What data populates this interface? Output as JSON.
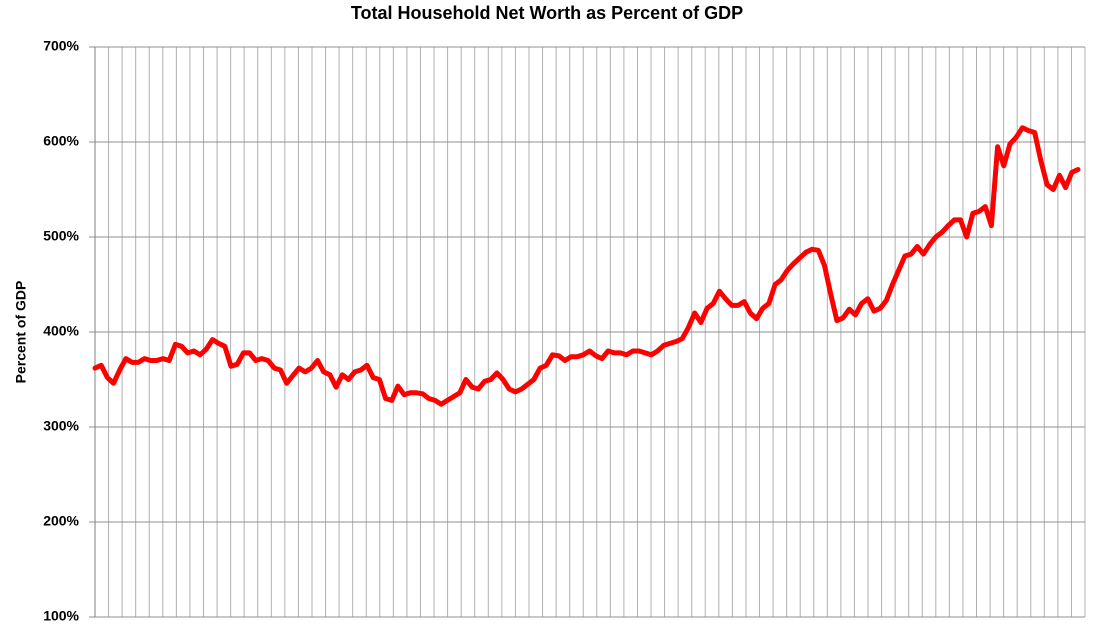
{
  "chart_data": {
    "type": "line",
    "title": "Total Household Net Worth as Percent of GDP",
    "y_label": "Percent of GDP",
    "categories": [
      null,
      null,
      null,
      null,
      null,
      null,
      null,
      null,
      null,
      null,
      null,
      null,
      null,
      null,
      null,
      null,
      null,
      null,
      null,
      null,
      null,
      null,
      null,
      null,
      null,
      null,
      null,
      null,
      null,
      null,
      null,
      null,
      null,
      null,
      null,
      null,
      null,
      null,
      null,
      null,
      null,
      null,
      null,
      null,
      null,
      null,
      null,
      null,
      null,
      null,
      null,
      null,
      null,
      null,
      null,
      null,
      null,
      null,
      null,
      null,
      null,
      null,
      null,
      null,
      null,
      null,
      null,
      null,
      null,
      null,
      null,
      null,
      null,
      null,
      null,
      null,
      null,
      null,
      null,
      null,
      null,
      null,
      null,
      null,
      null,
      null,
      null,
      null,
      null,
      null,
      null,
      null,
      null,
      null,
      null,
      null,
      null,
      null,
      null,
      null,
      null,
      null,
      null,
      null,
      null,
      null,
      null,
      null,
      null,
      null,
      null,
      null,
      null,
      null,
      null,
      null,
      null,
      null,
      null,
      null,
      null,
      null,
      null,
      null,
      null,
      null,
      null,
      null,
      null,
      null,
      null,
      null,
      null,
      null,
      null,
      null,
      null,
      null,
      null,
      null,
      null,
      null,
      null,
      null,
      null,
      null,
      null,
      null,
      null,
      null,
      null,
      null,
      null,
      null,
      null,
      null,
      null,
      null,
      null,
      null
    ],
    "values": [
      362,
      365,
      352,
      346,
      360,
      372,
      368,
      368,
      372,
      370,
      370,
      372,
      370,
      387,
      385,
      378,
      380,
      376,
      382,
      392,
      388,
      385,
      364,
      366,
      378,
      378,
      370,
      372,
      370,
      362,
      360,
      346,
      354,
      362,
      358,
      362,
      370,
      358,
      355,
      342,
      355,
      350,
      358,
      360,
      365,
      352,
      350,
      330,
      328,
      343,
      334,
      336,
      336,
      335,
      330,
      328,
      324,
      328,
      332,
      336,
      350,
      342,
      340,
      348,
      350,
      357,
      350,
      340,
      337,
      340,
      345,
      350,
      362,
      365,
      376,
      375,
      370,
      374,
      374,
      376,
      380,
      375,
      372,
      380,
      378,
      378,
      376,
      380,
      380,
      378,
      376,
      380,
      386,
      388,
      390,
      393,
      405,
      420,
      410,
      425,
      430,
      443,
      435,
      428,
      428,
      432,
      420,
      414,
      425,
      430,
      450,
      455,
      465,
      472,
      478,
      484,
      487,
      486,
      470,
      440,
      412,
      415,
      424,
      418,
      430,
      435,
      422,
      425,
      433,
      450,
      465,
      480,
      482,
      490,
      482,
      492,
      500,
      505,
      512,
      518,
      518,
      500,
      525,
      527,
      532,
      512,
      595,
      575,
      598,
      605,
      615,
      612,
      610,
      580,
      555,
      550,
      565,
      552,
      568,
      571
    ],
    "color": "#ff0000",
    "ylim": [
      100,
      700
    ],
    "yticks": [
      {
        "value": 100,
        "label": "100%"
      },
      {
        "value": 200,
        "label": "200%"
      },
      {
        "value": 300,
        "label": "300%"
      },
      {
        "value": 400,
        "label": "400%"
      },
      {
        "value": 500,
        "label": "500%"
      },
      {
        "value": 600,
        "label": "600%"
      },
      {
        "value": 700,
        "label": "700%"
      }
    ],
    "grid": true
  }
}
